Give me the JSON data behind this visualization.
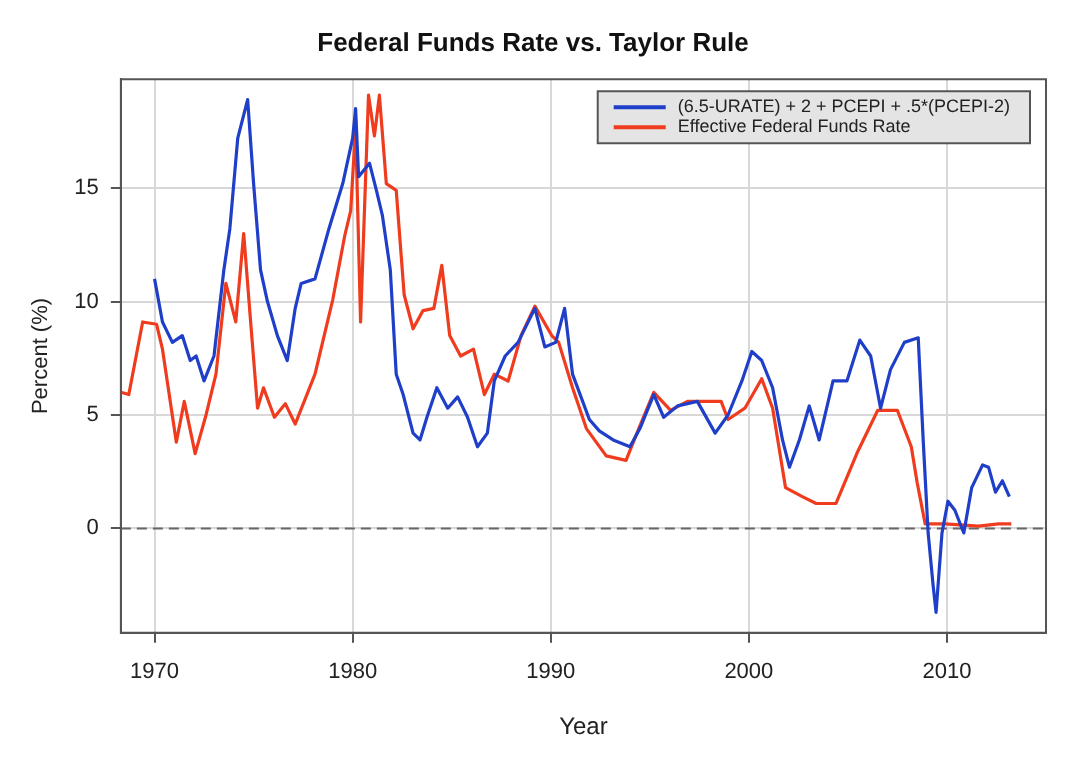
{
  "chart_data": {
    "type": "line",
    "title": "Federal Funds Rate vs. Taylor Rule",
    "xlabel": "Year",
    "ylabel": "Percent (%)",
    "xlim": [
      1968.3,
      2015
    ],
    "xticks": [
      1970,
      1980,
      1990,
      2000,
      2010
    ],
    "ylim": [
      -4.6,
      19.8
    ],
    "yticks": [
      0,
      5,
      10,
      15
    ],
    "grid": true,
    "legend": "top right",
    "ref_lines": [
      {
        "axis": "y",
        "value": 0,
        "color": "#666666",
        "line_style": "dashed"
      }
    ],
    "series": [
      {
        "name": "(6.5-URATE) + 2 + PCEPI + .5*(PCEPI-2)",
        "color": "#1f3fc8",
        "x": [
          1970.0,
          1970.4,
          1970.9,
          1971.4,
          1971.8,
          1972.1,
          1972.5,
          1973.0,
          1973.5,
          1973.8,
          1974.2,
          1974.7,
          1975.0,
          1975.35,
          1975.7,
          1976.2,
          1976.7,
          1977.1,
          1977.4,
          1978.1,
          1978.8,
          1979.5,
          1980.0,
          1980.15,
          1980.3,
          1980.85,
          1981.2,
          1981.5,
          1981.9,
          1982.2,
          1982.55,
          1983.05,
          1983.4,
          1983.75,
          1984.25,
          1984.8,
          1985.3,
          1985.8,
          1986.3,
          1986.8,
          1987.15,
          1987.7,
          1988.35,
          1989.2,
          1989.7,
          1990.25,
          1990.7,
          1991.1,
          1991.95,
          1992.45,
          1993.15,
          1994.0,
          1994.5,
          1995.2,
          1995.7,
          1996.4,
          1997.4,
          1998.3,
          1998.95,
          1999.65,
          2000.15,
          2000.65,
          2001.2,
          2001.7,
          2002.05,
          2002.55,
          2003.05,
          2003.55,
          2004.25,
          2004.95,
          2005.6,
          2006.15,
          2006.65,
          2007.15,
          2007.85,
          2008.55,
          2008.8,
          2009.05,
          2009.3,
          2009.45,
          2009.75,
          2010.05,
          2010.4,
          2010.85,
          2011.25,
          2011.8,
          2012.1,
          2012.45,
          2012.8,
          2013.15
        ],
        "values": [
          11.0,
          9.1,
          8.2,
          8.5,
          7.4,
          7.6,
          6.5,
          7.6,
          11.4,
          13.2,
          17.2,
          18.9,
          15.2,
          11.4,
          10.0,
          8.5,
          7.4,
          9.7,
          10.8,
          11.0,
          13.2,
          15.2,
          17.2,
          18.5,
          15.5,
          16.1,
          14.9,
          13.8,
          11.4,
          6.8,
          5.9,
          4.2,
          3.9,
          4.9,
          6.2,
          5.3,
          5.8,
          4.9,
          3.6,
          4.2,
          6.5,
          7.6,
          8.2,
          9.7,
          8.0,
          8.2,
          9.7,
          6.8,
          4.8,
          4.3,
          3.9,
          3.6,
          4.4,
          5.9,
          4.9,
          5.4,
          5.6,
          4.2,
          5.0,
          6.5,
          7.8,
          7.4,
          6.2,
          3.9,
          2.7,
          3.9,
          5.4,
          3.9,
          6.5,
          6.5,
          8.3,
          7.6,
          5.3,
          7.0,
          8.2,
          8.4,
          3.9,
          -0.2,
          -2.5,
          -3.7,
          -0.2,
          1.2,
          0.8,
          -0.2,
          1.8,
          2.8,
          2.7,
          1.6,
          2.1,
          1.4
        ]
      },
      {
        "name": "Effective Federal Funds Rate",
        "color": "#f03c1e",
        "x": [
          1968.3,
          1968.7,
          1969.4,
          1970.1,
          1970.4,
          1971.1,
          1971.5,
          1972.05,
          1972.6,
          1973.1,
          1973.6,
          1974.1,
          1974.5,
          1974.85,
          1975.2,
          1975.5,
          1976.05,
          1976.6,
          1977.1,
          1978.1,
          1979.0,
          1979.6,
          1979.9,
          1980.15,
          1980.4,
          1980.8,
          1981.1,
          1981.35,
          1981.7,
          1982.2,
          1982.6,
          1983.05,
          1983.55,
          1984.1,
          1984.5,
          1984.9,
          1985.45,
          1986.1,
          1986.65,
          1987.15,
          1987.85,
          1988.5,
          1989.2,
          1990.05,
          1990.4,
          1991.1,
          1991.8,
          1992.8,
          1993.8,
          1994.35,
          1995.2,
          1996.05,
          1996.9,
          1998.6,
          1998.95,
          1999.8,
          2000.65,
          2001.2,
          2001.85,
          2002.7,
          2003.4,
          2004.4,
          2005.45,
          2006.5,
          2007.5,
          2008.2,
          2008.5,
          2008.9,
          2009.9,
          2011.6,
          2012.6,
          2013.25
        ],
        "values": [
          6.0,
          5.9,
          9.1,
          9.0,
          7.9,
          3.8,
          5.6,
          3.3,
          5.0,
          6.8,
          10.8,
          9.1,
          13.0,
          9.1,
          5.3,
          6.2,
          4.9,
          5.5,
          4.6,
          6.8,
          10.1,
          12.9,
          14.0,
          17.7,
          9.1,
          19.1,
          17.3,
          19.1,
          15.2,
          14.9,
          10.3,
          8.8,
          9.6,
          9.7,
          11.6,
          8.5,
          7.6,
          7.9,
          5.9,
          6.8,
          6.5,
          8.5,
          9.8,
          8.5,
          8.2,
          6.2,
          4.4,
          3.2,
          3.0,
          4.2,
          6.0,
          5.2,
          5.6,
          5.6,
          4.8,
          5.3,
          6.6,
          5.3,
          1.8,
          1.4,
          1.1,
          1.1,
          3.3,
          5.2,
          5.2,
          3.6,
          2.0,
          0.2,
          0.2,
          0.1,
          0.2,
          0.2
        ]
      }
    ]
  }
}
